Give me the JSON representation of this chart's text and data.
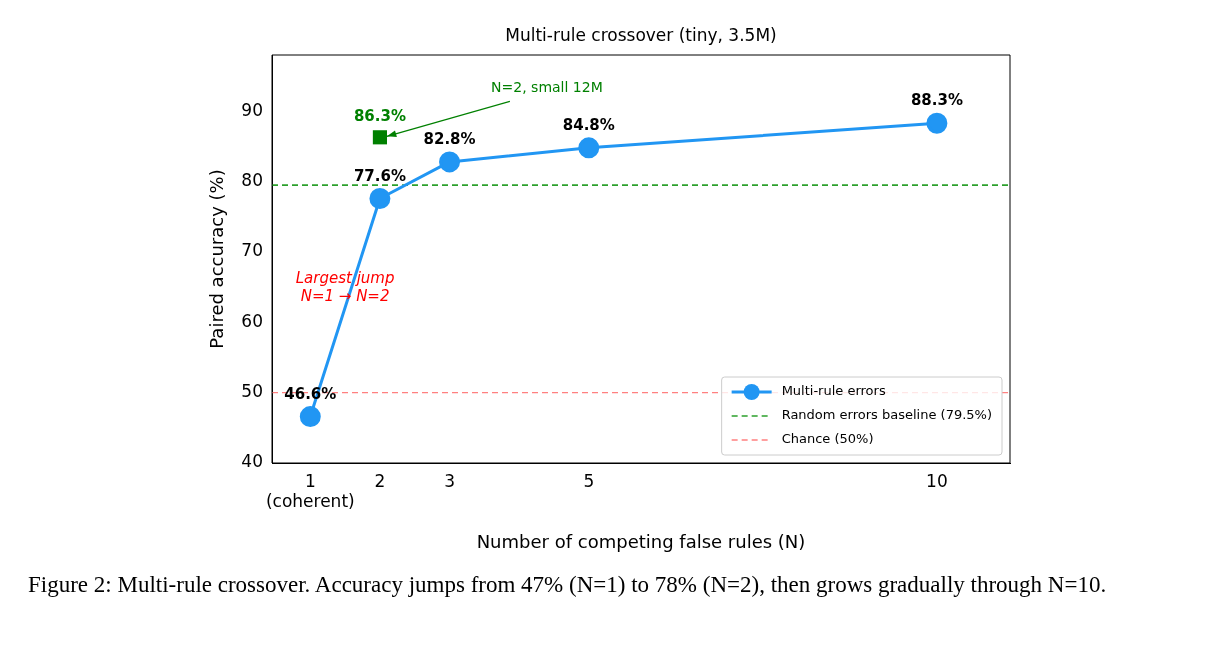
{
  "chart_data": {
    "type": "line",
    "title": "Multi-rule crossover (tiny, 3.5M)",
    "xlabel": "Number of competing false rules (N)",
    "ylabel": "Paired accuracy (%)",
    "xlim": [
      0.45,
      11.05
    ],
    "ylim": [
      40,
      98
    ],
    "xticks": [
      {
        "value": 1,
        "label": "1\n(coherent)"
      },
      2,
      3,
      5,
      10
    ],
    "yticks": [
      40,
      50,
      60,
      70,
      80,
      90
    ],
    "series": [
      {
        "name": "Multi-rule errors",
        "type": "line",
        "color": "#2196f3",
        "marker": "circle",
        "x": [
          1,
          2,
          3,
          5,
          10
        ],
        "values": [
          46.6,
          77.6,
          82.8,
          84.8,
          88.3
        ],
        "value_labels": [
          "46.6%",
          "77.6%",
          "82.8%",
          "84.8%",
          "88.3%"
        ]
      },
      {
        "type": "scatter",
        "color": "#008000",
        "marker": "square",
        "x": [
          2
        ],
        "values": [
          86.3
        ],
        "value_labels": [
          "86.3%"
        ]
      }
    ],
    "ref_lines": [
      {
        "axis": "y",
        "value": 79.5,
        "label": "Random errors baseline (79.5%)",
        "color": "#2ca02c",
        "line_style": "dashed"
      },
      {
        "axis": "y",
        "value": 50,
        "label": "Chance (50%)",
        "color": "#ff8080",
        "line_style": "dashed"
      }
    ],
    "annotations": [
      {
        "text": "N=2, small 12M",
        "x": 2,
        "y": 86.3
      },
      {
        "text": "Largest jump\nN=1 → N=2",
        "x": 1.5,
        "y": 64.3
      },
      "Figure 2: Multi-rule crossover. Accuracy jumps from 47% (N=1) to 78% (N=2), then grows gradually through N=10."
    ],
    "legend": "bottom right",
    "grid": false
  }
}
